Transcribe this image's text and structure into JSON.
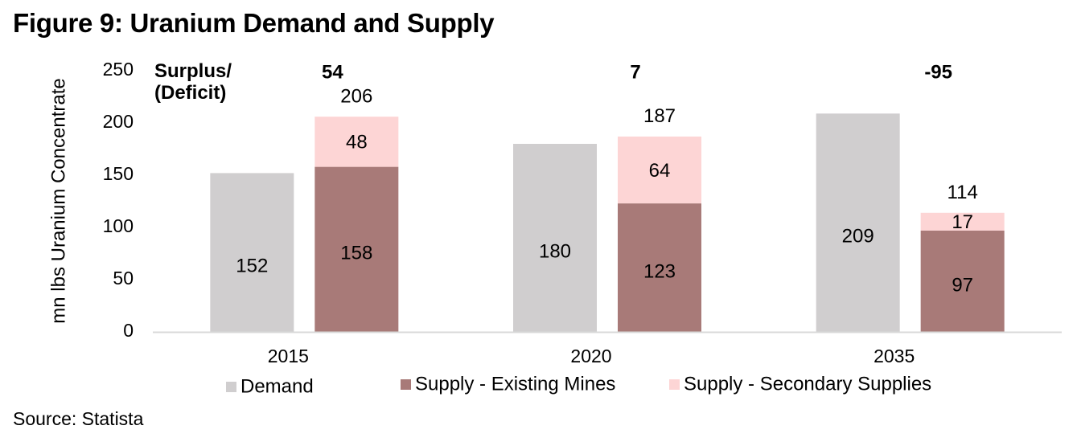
{
  "title": "Figure 9: Uranium Demand and Supply",
  "source": "Source: Statista",
  "chart_data": {
    "type": "bar",
    "title": "Figure 9: Uranium Demand and Supply",
    "xlabel": "",
    "ylabel": "mn lbs Uranium Concentrate",
    "ylim": [
      0,
      250
    ],
    "yticks": [
      0,
      50,
      100,
      150,
      200,
      250
    ],
    "grid": false,
    "categories": [
      "2015",
      "2020",
      "2035"
    ],
    "series": [
      {
        "name": "Demand",
        "color": "#d0cecf",
        "stack": "demand",
        "values": [
          152,
          180,
          209
        ]
      },
      {
        "name": "Supply - Existing Mines",
        "color": "#a87a78",
        "stack": "supply",
        "values": [
          158,
          123,
          97
        ]
      },
      {
        "name": "Supply - Secondary Supplies",
        "color": "#fdd5d5",
        "stack": "supply",
        "values": [
          48,
          64,
          17
        ]
      }
    ],
    "supply_totals": [
      206,
      187,
      114
    ],
    "surplus_label": [
      "Surplus/",
      "(Deficit)"
    ],
    "surplus_deficit": [
      54,
      7,
      -95
    ],
    "legend_position": "bottom"
  }
}
